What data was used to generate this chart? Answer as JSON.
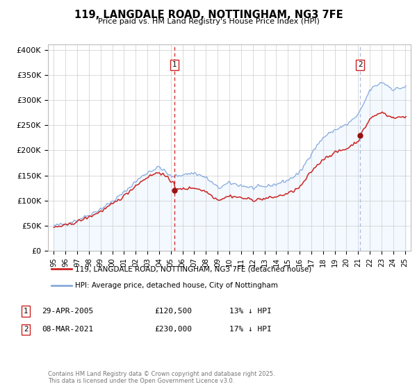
{
  "title": "119, LANGDALE ROAD, NOTTINGHAM, NG3 7FE",
  "subtitle": "Price paid vs. HM Land Registry's House Price Index (HPI)",
  "background_color": "#ffffff",
  "plot_bg_color": "#ffffff",
  "grid_color": "#cccccc",
  "line1_color": "#cc2222",
  "line2_color": "#88aadd",
  "marker1_color": "#991111",
  "vline1_color": "#cc2222",
  "vline2_color": "#aabbdd",
  "shade_color": "#ddeeff",
  "purchase1_x": 2005.32,
  "purchase1_y": 120500,
  "purchase2_x": 2021.18,
  "purchase2_y": 230000,
  "ylim": [
    0,
    410000
  ],
  "xlim": [
    1994.5,
    2025.5
  ],
  "yticks": [
    0,
    50000,
    100000,
    150000,
    200000,
    250000,
    300000,
    350000,
    400000
  ],
  "ytick_labels": [
    "£0",
    "£50K",
    "£100K",
    "£150K",
    "£200K",
    "£250K",
    "£300K",
    "£350K",
    "£400K"
  ],
  "xticks": [
    1995,
    1996,
    1997,
    1998,
    1999,
    2000,
    2001,
    2002,
    2003,
    2004,
    2005,
    2006,
    2007,
    2008,
    2009,
    2010,
    2011,
    2012,
    2013,
    2014,
    2015,
    2016,
    2017,
    2018,
    2019,
    2020,
    2021,
    2022,
    2023,
    2024,
    2025
  ],
  "xtick_labels": [
    "95",
    "96",
    "97",
    "98",
    "99",
    "00",
    "01",
    "02",
    "03",
    "04",
    "05",
    "06",
    "07",
    "08",
    "09",
    "10",
    "11",
    "12",
    "13",
    "14",
    "15",
    "16",
    "17",
    "18",
    "19",
    "20",
    "21",
    "22",
    "23",
    "24",
    "25"
  ],
  "legend_line1": "119, LANGDALE ROAD, NOTTINGHAM, NG3 7FE (detached house)",
  "legend_line2": "HPI: Average price, detached house, City of Nottingham",
  "table_row1": [
    "1",
    "29-APR-2005",
    "£120,500",
    "13% ↓ HPI"
  ],
  "table_row2": [
    "2",
    "08-MAR-2021",
    "£230,000",
    "17% ↓ HPI"
  ],
  "footer": "Contains HM Land Registry data © Crown copyright and database right 2025.\nThis data is licensed under the Open Government Licence v3.0."
}
